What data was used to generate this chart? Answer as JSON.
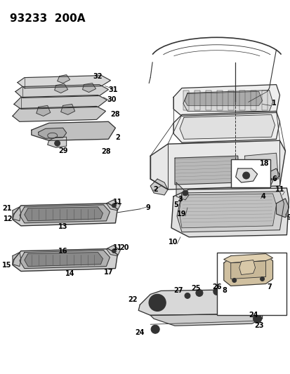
{
  "title": "93233  200A",
  "bg_color": "#ffffff",
  "fig_width": 4.14,
  "fig_height": 5.33,
  "dpi": 100,
  "title_fontsize": 11,
  "label_fontsize": 7,
  "line_color": "#333333",
  "lw_main": 0.8,
  "lw_thin": 0.5,
  "lw_thick": 1.2
}
